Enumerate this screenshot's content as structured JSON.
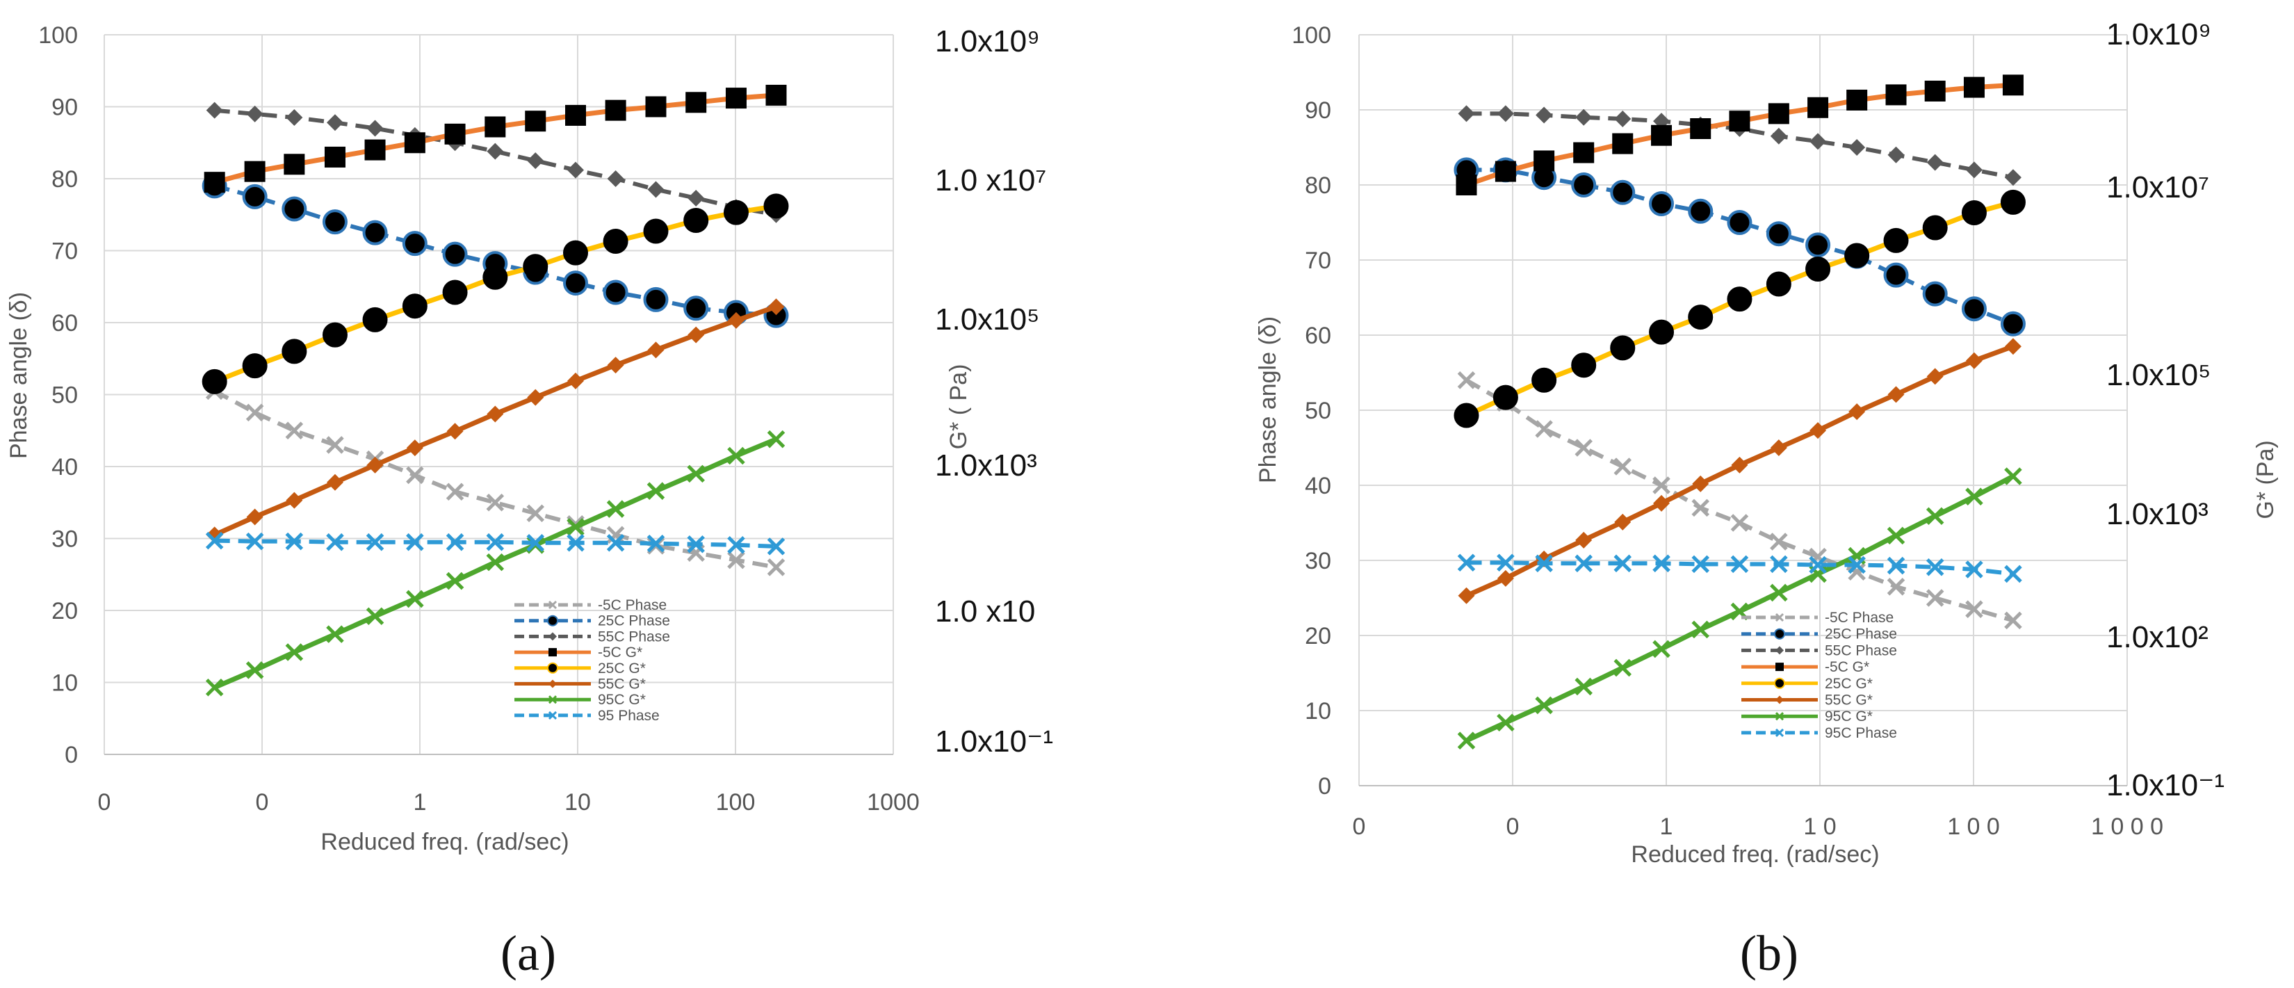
{
  "chart_data": [
    {
      "panel_label": "(a)",
      "type": "line",
      "xlabel": "Reduced freq.  (rad/sec)",
      "ylabel": "Phase angle (δ)",
      "y2label": "G* (  Pa)",
      "x_scale": "log",
      "xlim": [
        0.01,
        1000
      ],
      "ylim": [
        0,
        100
      ],
      "y_ticks": [
        "0",
        "10",
        "20",
        "30",
        "40",
        "50",
        "60",
        "70",
        "80",
        "90",
        "100"
      ],
      "x_ticks": [
        "0",
        "0",
        "1",
        "10",
        "100",
        "1000"
      ],
      "y2_ticks": [
        "1.0x10⁹",
        "1.0 x10⁷",
        "1.0x10⁵",
        "1.0x10³",
        "1.0 x10",
        "1.0x10⁻¹"
      ],
      "grid": true,
      "legend_position": "bottom-center",
      "series": [
        {
          "name": "-5C Phase",
          "color": "#a6a6a6",
          "dashed": true,
          "marker": "x",
          "x": [
            0.05,
            0.09,
            0.16,
            0.29,
            0.52,
            0.93,
            1.67,
            3.0,
            5.4,
            9.7,
            17.4,
            31.3,
            56.2,
            101,
            181
          ],
          "values": [
            50.5,
            47.5,
            45.0,
            43.0,
            41.0,
            38.8,
            36.5,
            35.0,
            33.5,
            32.0,
            30.5,
            29.0,
            28.0,
            27.0,
            26.0
          ]
        },
        {
          "name": "25C Phase",
          "color": "#2e75b6",
          "dashed": true,
          "marker": "circle",
          "x": [
            0.05,
            0.09,
            0.16,
            0.29,
            0.52,
            0.93,
            1.67,
            3.0,
            5.4,
            9.7,
            17.4,
            31.3,
            56.2,
            101,
            181
          ],
          "values": [
            79.0,
            77.5,
            75.8,
            74.0,
            72.5,
            71.0,
            69.5,
            68.2,
            67.0,
            65.5,
            64.2,
            63.2,
            62.0,
            61.4,
            61.0
          ]
        },
        {
          "name": "55C Phase",
          "color": "#595959",
          "dashed": true,
          "marker": "diamond",
          "x": [
            0.05,
            0.09,
            0.16,
            0.29,
            0.52,
            0.93,
            1.67,
            3.0,
            5.4,
            9.7,
            17.4,
            31.3,
            56.2,
            101,
            181
          ],
          "values": [
            89.5,
            89.0,
            88.5,
            87.8,
            87.0,
            86.0,
            85.0,
            83.8,
            82.5,
            81.2,
            80.0,
            78.5,
            77.3,
            76.0,
            75.0
          ]
        },
        {
          "name": "-5C G*",
          "color": "#ed7d31",
          "dashed": false,
          "marker": "square",
          "x": [
            0.05,
            0.09,
            0.16,
            0.29,
            0.52,
            0.93,
            1.67,
            3.0,
            5.4,
            9.7,
            17.4,
            31.3,
            56.2,
            101,
            181
          ],
          "values": [
            79.5,
            81.0,
            82.0,
            83.0,
            84.0,
            85.0,
            86.2,
            87.2,
            88.0,
            88.8,
            89.5,
            90.0,
            90.6,
            91.2,
            91.6
          ]
        },
        {
          "name": "25C G*",
          "color": "#ffc000",
          "dashed": false,
          "marker": "circle",
          "x": [
            0.05,
            0.09,
            0.16,
            0.29,
            0.52,
            0.93,
            1.67,
            3.0,
            5.4,
            9.7,
            17.4,
            31.3,
            56.2,
            101,
            181
          ],
          "values": [
            51.8,
            54.0,
            56.0,
            58.3,
            60.4,
            62.3,
            64.2,
            66.3,
            67.8,
            69.7,
            71.3,
            72.7,
            74.2,
            75.3,
            76.2
          ]
        },
        {
          "name": "55C G*",
          "color": "#c55a11",
          "dashed": false,
          "marker": "diamond",
          "x": [
            0.05,
            0.09,
            0.16,
            0.29,
            0.52,
            0.93,
            1.67,
            3.0,
            5.4,
            9.7,
            17.4,
            31.3,
            56.2,
            101,
            181
          ],
          "values": [
            30.5,
            33.0,
            35.3,
            37.8,
            40.2,
            42.6,
            44.9,
            47.3,
            49.6,
            51.9,
            54.1,
            56.2,
            58.3,
            60.3,
            62.2
          ]
        },
        {
          "name": "95C G*",
          "color": "#4ea72e",
          "dashed": false,
          "marker": "x",
          "x": [
            0.05,
            0.09,
            0.16,
            0.29,
            0.52,
            0.93,
            1.67,
            3.0,
            5.4,
            9.7,
            17.4,
            31.3,
            56.2,
            101,
            181
          ],
          "values": [
            9.3,
            11.7,
            14.2,
            16.7,
            19.2,
            21.6,
            24.1,
            26.7,
            29.1,
            31.6,
            34.1,
            36.6,
            39.0,
            41.5,
            43.8
          ]
        },
        {
          "name": "95 Phase",
          "color": "#2e9ad6",
          "dashed": true,
          "marker": "x",
          "x": [
            0.05,
            0.09,
            0.16,
            0.29,
            0.52,
            0.93,
            1.67,
            3.0,
            5.4,
            9.7,
            17.4,
            31.3,
            56.2,
            101,
            181
          ],
          "values": [
            29.7,
            29.6,
            29.6,
            29.5,
            29.5,
            29.5,
            29.5,
            29.5,
            29.4,
            29.4,
            29.4,
            29.3,
            29.2,
            29.1,
            28.9
          ]
        }
      ]
    },
    {
      "panel_label": "(b)",
      "type": "line",
      "xlabel": "Reduced freq.  (rad/sec)",
      "ylabel": "Phase angle (δ)",
      "y2label": "G* (Pa)",
      "x_scale": "log",
      "xlim": [
        0.01,
        1000
      ],
      "ylim": [
        0,
        100
      ],
      "y_ticks": [
        "0",
        "10",
        "20",
        "30",
        "40",
        "50",
        "60",
        "70",
        "80",
        "90",
        "100"
      ],
      "x_ticks": [
        "0",
        "0",
        "1",
        "1 0",
        "1 0 0",
        "1 0 0 0"
      ],
      "y2_ticks": [
        "1.0x10⁹",
        "1.0x10⁷",
        "1.0x10⁵",
        "1.0x10³",
        "1.0x10²",
        "1.0x10⁻¹"
      ],
      "grid": true,
      "legend_position": "bottom-center",
      "series": [
        {
          "name": "-5C Phase",
          "color": "#a6a6a6",
          "dashed": true,
          "marker": "x",
          "x": [
            0.05,
            0.09,
            0.16,
            0.29,
            0.52,
            0.93,
            1.67,
            3.0,
            5.4,
            9.7,
            17.4,
            31.3,
            56.2,
            101,
            181
          ],
          "values": [
            54.0,
            51.0,
            47.5,
            45.0,
            42.5,
            40.0,
            37.0,
            35.0,
            32.5,
            30.5,
            28.5,
            26.5,
            25.0,
            23.5,
            22.0
          ]
        },
        {
          "name": "25C Phase",
          "color": "#2e75b6",
          "dashed": true,
          "marker": "circle",
          "x": [
            0.05,
            0.09,
            0.16,
            0.29,
            0.52,
            0.93,
            1.67,
            3.0,
            5.4,
            9.7,
            17.4,
            31.3,
            56.2,
            101,
            181
          ],
          "values": [
            82.0,
            82.0,
            81.0,
            80.0,
            79.0,
            77.5,
            76.5,
            75.0,
            73.5,
            72.0,
            70.5,
            68.0,
            65.5,
            63.5,
            61.5
          ]
        },
        {
          "name": "55C Phase",
          "color": "#595959",
          "dashed": true,
          "marker": "diamond",
          "x": [
            0.05,
            0.09,
            0.16,
            0.29,
            0.52,
            0.93,
            1.67,
            3.0,
            5.4,
            9.7,
            17.4,
            31.3,
            56.2,
            101,
            181
          ],
          "values": [
            89.5,
            89.5,
            89.3,
            89.0,
            88.8,
            88.5,
            88.0,
            87.5,
            86.5,
            85.8,
            85.0,
            84.0,
            83.0,
            82.0,
            81.0
          ]
        },
        {
          "name": "-5C G*",
          "color": "#ed7d31",
          "dashed": false,
          "marker": "square",
          "x": [
            0.05,
            0.09,
            0.16,
            0.29,
            0.52,
            0.93,
            1.67,
            3.0,
            5.4,
            9.7,
            17.4,
            31.3,
            56.2,
            101,
            181
          ],
          "values": [
            80.0,
            81.8,
            83.2,
            84.3,
            85.5,
            86.6,
            87.5,
            88.5,
            89.5,
            90.3,
            91.3,
            92.0,
            92.5,
            93.0,
            93.3
          ]
        },
        {
          "name": "25C G*",
          "color": "#ffc000",
          "dashed": false,
          "marker": "circle",
          "x": [
            0.05,
            0.09,
            0.16,
            0.29,
            0.52,
            0.93,
            1.67,
            3.0,
            5.4,
            9.7,
            17.4,
            31.3,
            56.2,
            101,
            181
          ],
          "values": [
            49.3,
            51.7,
            54.0,
            56.0,
            58.3,
            60.4,
            62.4,
            64.8,
            66.8,
            68.8,
            70.6,
            72.6,
            74.3,
            76.3,
            77.7
          ]
        },
        {
          "name": "55C G*",
          "color": "#c55a11",
          "dashed": false,
          "marker": "diamond",
          "x": [
            0.05,
            0.09,
            0.16,
            0.29,
            0.52,
            0.93,
            1.67,
            3.0,
            5.4,
            9.7,
            17.4,
            31.3,
            56.2,
            101,
            181
          ],
          "values": [
            25.3,
            27.6,
            30.2,
            32.7,
            35.1,
            37.6,
            40.2,
            42.7,
            45.0,
            47.3,
            49.8,
            52.1,
            54.5,
            56.6,
            58.5
          ]
        },
        {
          "name": "95C G*",
          "color": "#4ea72e",
          "dashed": false,
          "marker": "x",
          "x": [
            0.05,
            0.09,
            0.16,
            0.29,
            0.52,
            0.93,
            1.67,
            3.0,
            5.4,
            9.7,
            17.4,
            31.3,
            56.2,
            101,
            181
          ],
          "values": [
            6.0,
            8.4,
            10.7,
            13.2,
            15.7,
            18.2,
            20.8,
            23.2,
            25.7,
            28.2,
            30.6,
            33.3,
            35.9,
            38.5,
            41.2
          ]
        },
        {
          "name": "95C Phase",
          "color": "#2e9ad6",
          "dashed": true,
          "marker": "x",
          "x": [
            0.05,
            0.09,
            0.16,
            0.29,
            0.52,
            0.93,
            1.67,
            3.0,
            5.4,
            9.7,
            17.4,
            31.3,
            56.2,
            101,
            181
          ],
          "values": [
            29.7,
            29.7,
            29.6,
            29.6,
            29.6,
            29.6,
            29.5,
            29.5,
            29.5,
            29.4,
            29.4,
            29.3,
            29.1,
            28.8,
            28.2
          ]
        }
      ]
    }
  ]
}
